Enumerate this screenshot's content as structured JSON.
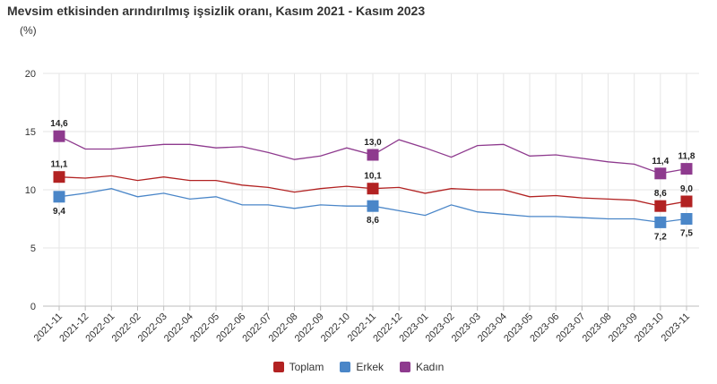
{
  "chart_data": {
    "type": "line",
    "title": "Mevsim etkisinden arındırılmış işsizlik oranı, Kasım 2021 - Kasım 2023",
    "subtitle": "(%)",
    "xlabel": "",
    "ylabel": "",
    "ylim": [
      0,
      20
    ],
    "yticks": [
      "0",
      "5",
      "10",
      "15",
      "20"
    ],
    "grid": true,
    "legend_position": "bottom",
    "categories": [
      "2021-11",
      "2021-12",
      "2022-01",
      "2022-02",
      "2022-03",
      "2022-04",
      "2022-05",
      "2022-06",
      "2022-07",
      "2022-08",
      "2022-09",
      "2022-10",
      "2022-11",
      "2022-12",
      "2023-01",
      "2023-02",
      "2023-03",
      "2023-04",
      "2023-05",
      "2023-06",
      "2023-07",
      "2023-08",
      "2023-09",
      "2023-10",
      "2023-11"
    ],
    "series": [
      {
        "name": "Toplam",
        "color": "#b22222",
        "values": [
          11.1,
          11.0,
          11.2,
          10.8,
          11.1,
          10.8,
          10.8,
          10.4,
          10.2,
          9.8,
          10.1,
          10.3,
          10.1,
          10.2,
          9.7,
          10.1,
          10.0,
          10.0,
          9.4,
          9.5,
          9.3,
          9.2,
          9.1,
          8.6,
          9.0
        ],
        "markers": [
          {
            "index": 0,
            "label": "11,1",
            "pos": "above"
          },
          {
            "index": 12,
            "label": "10,1",
            "pos": "above"
          },
          {
            "index": 23,
            "label": "8,6",
            "pos": "above"
          },
          {
            "index": 24,
            "label": "9,0",
            "pos": "above"
          }
        ]
      },
      {
        "name": "Erkek",
        "color": "#4a86c8",
        "values": [
          9.4,
          9.7,
          10.1,
          9.4,
          9.7,
          9.2,
          9.4,
          8.7,
          8.7,
          8.4,
          8.7,
          8.6,
          8.6,
          8.2,
          7.8,
          8.7,
          8.1,
          7.9,
          7.7,
          7.7,
          7.6,
          7.5,
          7.5,
          7.2,
          7.5
        ],
        "markers": [
          {
            "index": 0,
            "label": "9,4",
            "pos": "below"
          },
          {
            "index": 12,
            "label": "8,6",
            "pos": "below"
          },
          {
            "index": 23,
            "label": "7,2",
            "pos": "below"
          },
          {
            "index": 24,
            "label": "7,5",
            "pos": "below"
          }
        ]
      },
      {
        "name": "Kadın",
        "color": "#8e3a8e",
        "values": [
          14.6,
          13.5,
          13.5,
          13.7,
          13.9,
          13.9,
          13.6,
          13.7,
          13.2,
          12.6,
          12.9,
          13.6,
          13.0,
          14.3,
          13.6,
          12.8,
          13.8,
          13.9,
          12.9,
          13.0,
          12.7,
          12.4,
          12.2,
          11.4,
          11.8
        ],
        "markers": [
          {
            "index": 0,
            "label": "14,6",
            "pos": "above"
          },
          {
            "index": 12,
            "label": "13,0",
            "pos": "above"
          },
          {
            "index": 23,
            "label": "11,4",
            "pos": "above"
          },
          {
            "index": 24,
            "label": "11,8",
            "pos": "above"
          }
        ]
      }
    ]
  }
}
